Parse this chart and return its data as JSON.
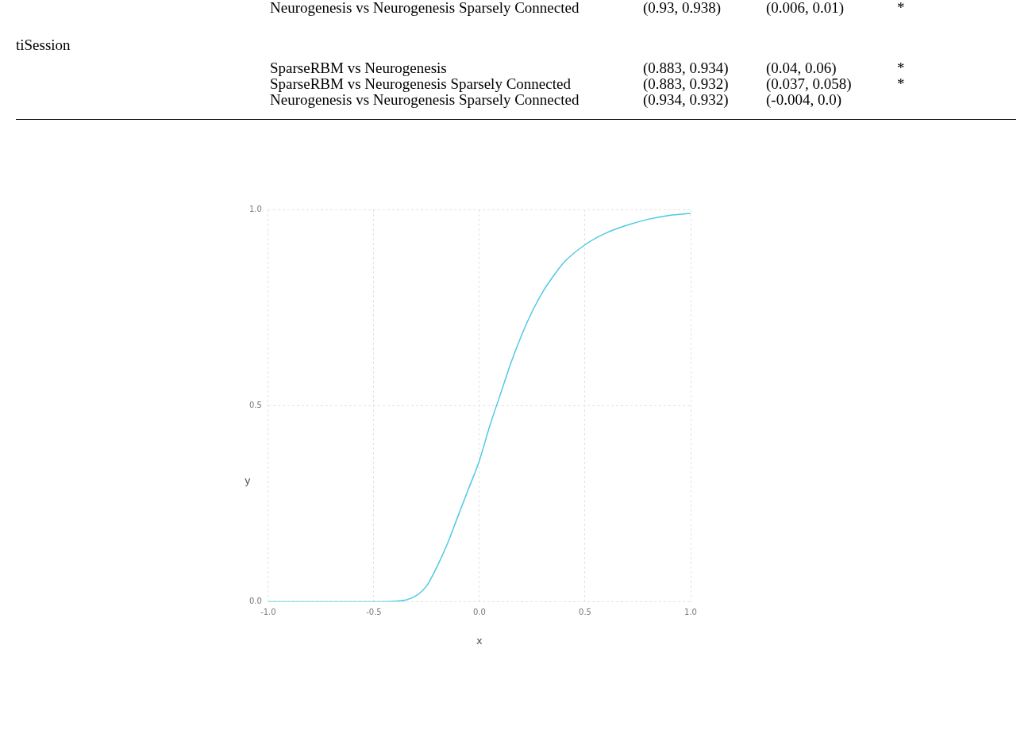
{
  "chart_data": {
    "type": "line",
    "xlabel": "x",
    "ylabel": "y",
    "annotations": [
      "Neurogenesis vs Neurogenesis Sparsely Connected",
      "(0.93, 0.938)",
      "(0.006, 0.01)",
      "*",
      "tiSession",
      "SparseRBM vs Neurogenesis",
      "(0.883, 0.934)",
      "(0.04, 0.06)",
      "*",
      "SparseRBM vs Neurogenesis Sparsely Connected",
      "(0.883, 0.932)",
      "(0.037, 0.058)",
      "*",
      "Neurogenesis vs Neurogenesis Sparsely Connected",
      "(0.934, 0.932)",
      "(-0.004, 0.0)"
    ],
    "x": [
      -1,
      -0.5,
      -0.4,
      -0.35,
      -0.3,
      -0.25,
      -0.2,
      -0.15,
      -0.1,
      -0.05,
      0,
      0.05,
      0.1,
      0.15,
      0.2,
      0.25,
      0.3,
      0.35,
      0.4,
      0.5,
      0.6,
      0.7,
      0.8,
      0.9,
      1
    ],
    "series": [
      {
        "color": "#4ec9e6",
        "values": [
          0,
          0,
          0.001,
          0.004,
          0.015,
          0.04,
          0.09,
          0.15,
          0.22,
          0.29,
          0.36,
          0.45,
          0.53,
          0.61,
          0.68,
          0.74,
          0.79,
          0.83,
          0.865,
          0.91,
          0.94,
          0.96,
          0.975,
          0.985,
          0.99
        ]
      }
    ],
    "xlim": [
      -1,
      1
    ],
    "xticks": [
      {
        "value": -1,
        "label": "-1.0"
      },
      {
        "value": -0.5,
        "label": "-0.5"
      },
      {
        "value": 0,
        "label": "0.0"
      },
      {
        "value": 0.5,
        "label": "0.5"
      },
      {
        "value": 1,
        "label": "1.0"
      }
    ],
    "ylim": [
      0,
      1
    ],
    "yticks": [
      {
        "value": 0,
        "label": "0.0"
      },
      {
        "value": 0.5,
        "label": "0.5"
      },
      {
        "value": 1,
        "label": "1.0"
      }
    ],
    "grid": true,
    "marker": "none",
    "line_style": "solid"
  }
}
